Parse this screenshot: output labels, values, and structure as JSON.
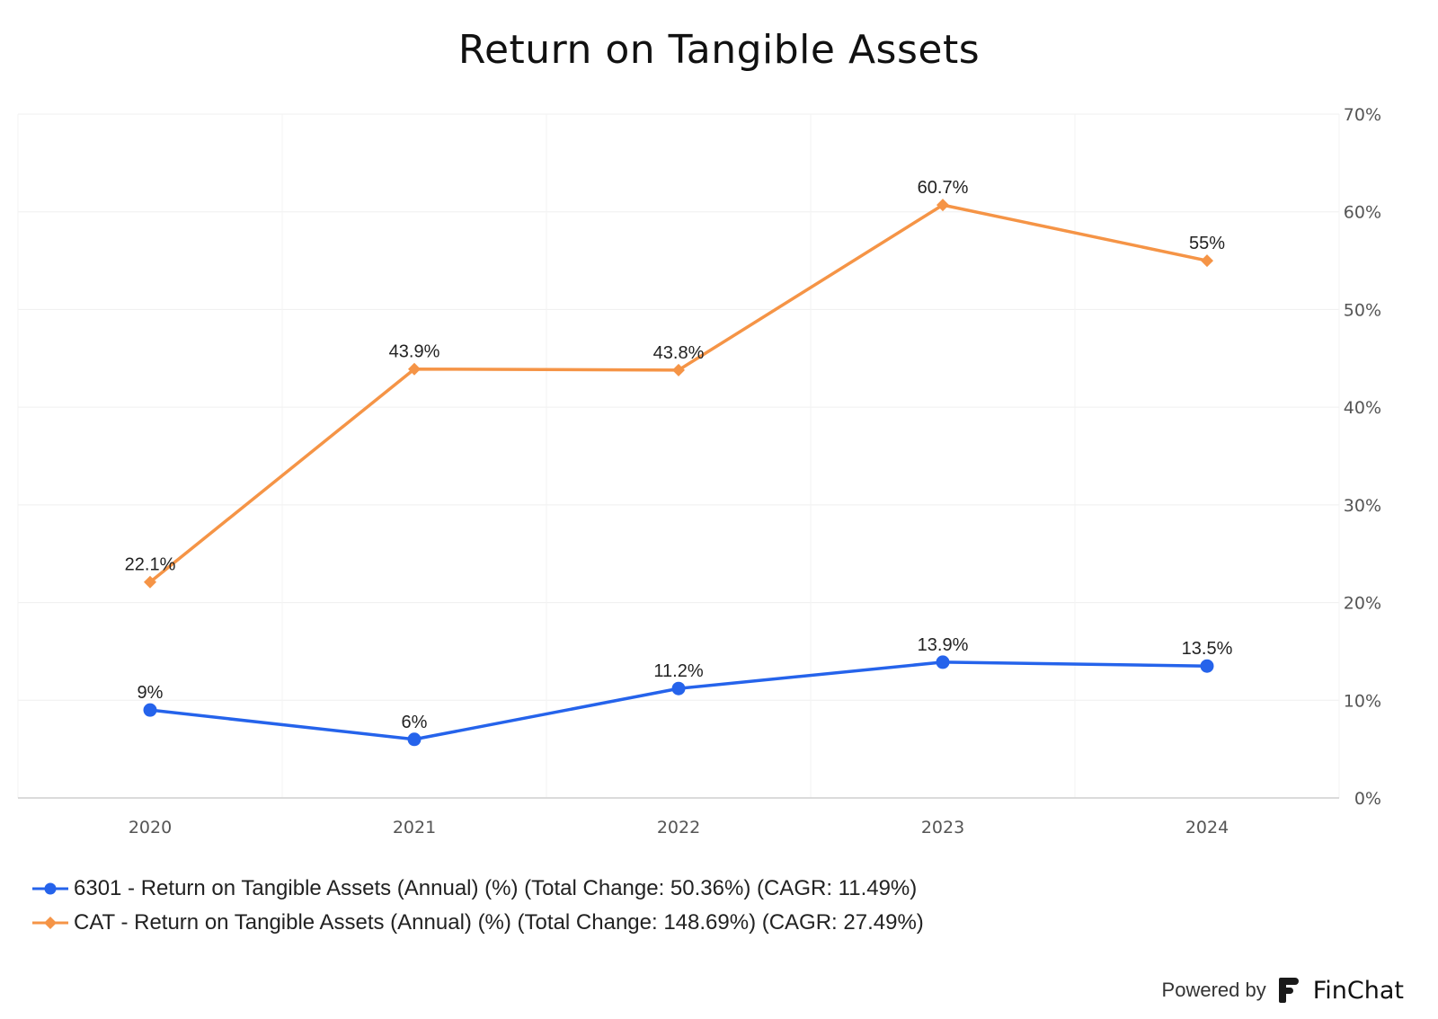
{
  "chart_data": {
    "type": "line",
    "title": "Return on Tangible Assets",
    "categories": [
      "2020",
      "2021",
      "2022",
      "2023",
      "2024"
    ],
    "ylim": [
      0,
      70
    ],
    "y_ticks": [
      "0%",
      "10%",
      "20%",
      "30%",
      "40%",
      "50%",
      "60%",
      "70%"
    ],
    "y_axis_position": "right",
    "grid": true,
    "legend_position": "bottom-left",
    "series": [
      {
        "name": "6301 - Return on Tangible Assets (Annual) (%) (Total Change: 50.36%) (CAGR: 11.49%)",
        "values": [
          9,
          6,
          11.2,
          13.9,
          13.5
        ],
        "data_labels": [
          "9%",
          "6%",
          "11.2%",
          "13.9%",
          "13.5%"
        ],
        "color": "#2563eb",
        "marker": "circle"
      },
      {
        "name": "CAT - Return on Tangible Assets (Annual) (%) (Total Change: 148.69%) (CAGR: 27.49%)",
        "values": [
          22.1,
          43.9,
          43.8,
          60.7,
          55
        ],
        "data_labels": [
          "22.1%",
          "43.9%",
          "43.8%",
          "60.7%",
          "55%"
        ],
        "color": "#f59446",
        "marker": "diamond"
      }
    ]
  },
  "footer": {
    "powered_by": "Powered by",
    "brand": "FinChat"
  }
}
